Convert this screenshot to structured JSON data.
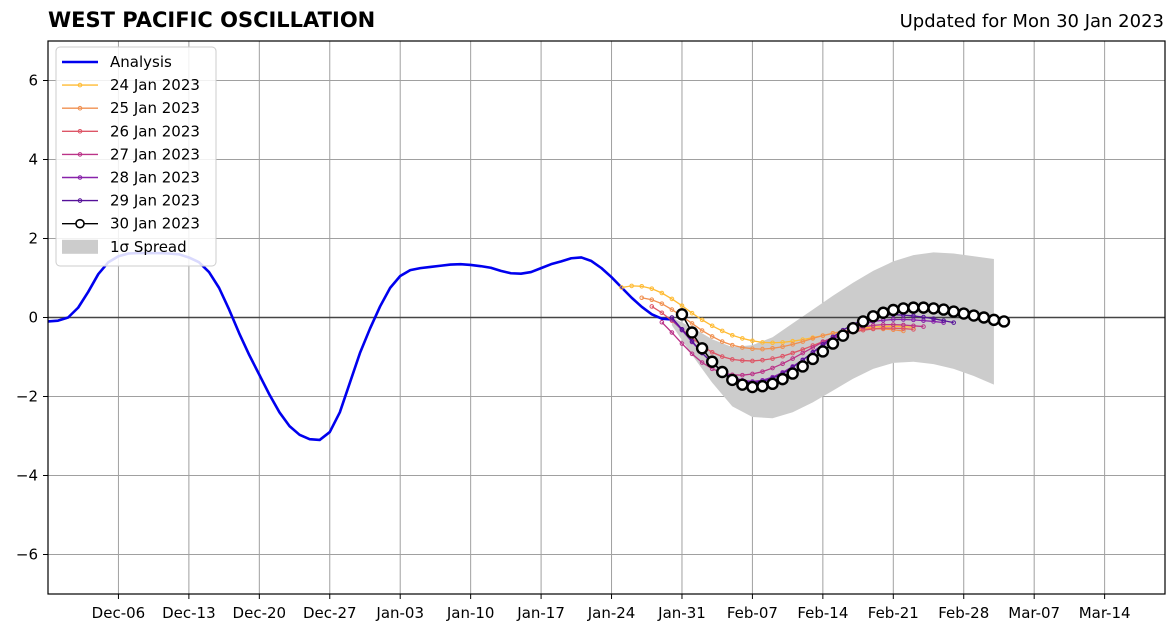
{
  "chart_data": {
    "type": "line",
    "title": "WEST PACIFIC OSCILLATION",
    "subtitle": "Updated for Mon 30 Jan 2023",
    "x_axis": {
      "type": "date",
      "range": [
        "2022-11-29",
        "2023-03-20"
      ],
      "ticks": [
        {
          "date": "2022-12-06",
          "label": "Dec-06"
        },
        {
          "date": "2022-12-13",
          "label": "Dec-13"
        },
        {
          "date": "2022-12-20",
          "label": "Dec-20"
        },
        {
          "date": "2022-12-27",
          "label": "Dec-27"
        },
        {
          "date": "2023-01-03",
          "label": "Jan-03"
        },
        {
          "date": "2023-01-10",
          "label": "Jan-10"
        },
        {
          "date": "2023-01-17",
          "label": "Jan-17"
        },
        {
          "date": "2023-01-24",
          "label": "Jan-24"
        },
        {
          "date": "2023-01-31",
          "label": "Jan-31"
        },
        {
          "date": "2023-02-07",
          "label": "Feb-07"
        },
        {
          "date": "2023-02-14",
          "label": "Feb-14"
        },
        {
          "date": "2023-02-21",
          "label": "Feb-21"
        },
        {
          "date": "2023-02-28",
          "label": "Feb-28"
        },
        {
          "date": "2023-03-07",
          "label": "Mar-07"
        },
        {
          "date": "2023-03-14",
          "label": "Mar-14"
        }
      ]
    },
    "y_axis": {
      "range": [
        -7,
        7
      ],
      "ticks": [
        {
          "value": -6,
          "label": "−6"
        },
        {
          "value": -4,
          "label": "−4"
        },
        {
          "value": -2,
          "label": "−2"
        },
        {
          "value": 0,
          "label": "0"
        },
        {
          "value": 2,
          "label": "2"
        },
        {
          "value": 4,
          "label": "4"
        },
        {
          "value": 6,
          "label": "6"
        }
      ]
    },
    "grid": true,
    "legend_placement": "top-left",
    "analysis": {
      "name": "Analysis",
      "color": "#0000ee",
      "points": [
        [
          "2022-11-29",
          -0.1
        ],
        [
          "2022-11-30",
          -0.08
        ],
        [
          "2022-12-01",
          0.0
        ],
        [
          "2022-12-02",
          0.25
        ],
        [
          "2022-12-03",
          0.65
        ],
        [
          "2022-12-04",
          1.1
        ],
        [
          "2022-12-05",
          1.4
        ],
        [
          "2022-12-06",
          1.55
        ],
        [
          "2022-12-07",
          1.62
        ],
        [
          "2022-12-08",
          1.63
        ],
        [
          "2022-12-09",
          1.63
        ],
        [
          "2022-12-10",
          1.63
        ],
        [
          "2022-12-11",
          1.62
        ],
        [
          "2022-12-12",
          1.6
        ],
        [
          "2022-12-13",
          1.52
        ],
        [
          "2022-12-14",
          1.4
        ],
        [
          "2022-12-15",
          1.15
        ],
        [
          "2022-12-16",
          0.75
        ],
        [
          "2022-12-17",
          0.2
        ],
        [
          "2022-12-18",
          -0.4
        ],
        [
          "2022-12-19",
          -0.95
        ],
        [
          "2022-12-20",
          -1.45
        ],
        [
          "2022-12-21",
          -1.95
        ],
        [
          "2022-12-22",
          -2.4
        ],
        [
          "2022-12-23",
          -2.75
        ],
        [
          "2022-12-24",
          -2.97
        ],
        [
          "2022-12-25",
          -3.08
        ],
        [
          "2022-12-26",
          -3.1
        ],
        [
          "2022-12-27",
          -2.9
        ],
        [
          "2022-12-28",
          -2.4
        ],
        [
          "2022-12-29",
          -1.65
        ],
        [
          "2022-12-30",
          -0.9
        ],
        [
          "2022-12-31",
          -0.28
        ],
        [
          "2023-01-01",
          0.28
        ],
        [
          "2023-01-02",
          0.75
        ],
        [
          "2023-01-03",
          1.05
        ],
        [
          "2023-01-04",
          1.2
        ],
        [
          "2023-01-05",
          1.25
        ],
        [
          "2023-01-06",
          1.28
        ],
        [
          "2023-01-07",
          1.31
        ],
        [
          "2023-01-08",
          1.34
        ],
        [
          "2023-01-09",
          1.35
        ],
        [
          "2023-01-10",
          1.33
        ],
        [
          "2023-01-11",
          1.3
        ],
        [
          "2023-01-12",
          1.26
        ],
        [
          "2023-01-13",
          1.18
        ],
        [
          "2023-01-14",
          1.12
        ],
        [
          "2023-01-15",
          1.11
        ],
        [
          "2023-01-16",
          1.15
        ],
        [
          "2023-01-17",
          1.25
        ],
        [
          "2023-01-18",
          1.35
        ],
        [
          "2023-01-19",
          1.42
        ],
        [
          "2023-01-20",
          1.5
        ],
        [
          "2023-01-21",
          1.52
        ],
        [
          "2023-01-22",
          1.43
        ],
        [
          "2023-01-23",
          1.25
        ],
        [
          "2023-01-24",
          1.02
        ],
        [
          "2023-01-25",
          0.76
        ],
        [
          "2023-01-26",
          0.5
        ],
        [
          "2023-01-27",
          0.27
        ],
        [
          "2023-01-28",
          0.08
        ],
        [
          "2023-01-29",
          -0.03
        ],
        [
          "2023-01-30",
          -0.05
        ]
      ]
    },
    "spread": {
      "name": "1σ Spread",
      "color": "#cccccc",
      "upper": [
        [
          "2023-01-30",
          0.0
        ],
        [
          "2023-02-01",
          -0.25
        ],
        [
          "2023-02-03",
          -0.55
        ],
        [
          "2023-02-05",
          -0.75
        ],
        [
          "2023-02-07",
          -0.7
        ],
        [
          "2023-02-09",
          -0.5
        ],
        [
          "2023-02-11",
          -0.15
        ],
        [
          "2023-02-13",
          0.2
        ],
        [
          "2023-02-15",
          0.55
        ],
        [
          "2023-02-17",
          0.88
        ],
        [
          "2023-02-19",
          1.18
        ],
        [
          "2023-02-21",
          1.42
        ],
        [
          "2023-02-23",
          1.58
        ],
        [
          "2023-02-25",
          1.65
        ],
        [
          "2023-02-27",
          1.62
        ],
        [
          "2023-03-01",
          1.55
        ],
        [
          "2023-03-03",
          1.48
        ]
      ],
      "lower": [
        [
          "2023-01-30",
          -0.2
        ],
        [
          "2023-02-01",
          -0.95
        ],
        [
          "2023-02-03",
          -1.65
        ],
        [
          "2023-02-05",
          -2.25
        ],
        [
          "2023-02-07",
          -2.52
        ],
        [
          "2023-02-09",
          -2.55
        ],
        [
          "2023-02-11",
          -2.4
        ],
        [
          "2023-02-13",
          -2.15
        ],
        [
          "2023-02-15",
          -1.85
        ],
        [
          "2023-02-17",
          -1.55
        ],
        [
          "2023-02-19",
          -1.3
        ],
        [
          "2023-02-21",
          -1.15
        ],
        [
          "2023-02-23",
          -1.12
        ],
        [
          "2023-02-25",
          -1.18
        ],
        [
          "2023-02-27",
          -1.3
        ],
        [
          "2023-03-01",
          -1.48
        ],
        [
          "2023-03-03",
          -1.7
        ]
      ]
    },
    "forecasts": [
      {
        "name": "24 Jan 2023",
        "color": "#ffbb33",
        "start": "2023-01-25",
        "values": [
          0.76,
          0.8,
          0.79,
          0.73,
          0.62,
          0.47,
          0.3,
          0.11,
          -0.06,
          -0.21,
          -0.34,
          -0.45,
          -0.53,
          -0.59,
          -0.63,
          -0.64,
          -0.63,
          -0.6,
          -0.56,
          -0.51,
          -0.46,
          -0.4,
          -0.35,
          -0.3,
          -0.27,
          -0.24,
          -0.23,
          -0.22,
          -0.23,
          -0.25
        ]
      },
      {
        "name": "25 Jan 2023",
        "color": "#f09050",
        "start": "2023-01-27",
        "values": [
          0.5,
          0.45,
          0.35,
          0.2,
          0.03,
          -0.15,
          -0.33,
          -0.48,
          -0.61,
          -0.7,
          -0.76,
          -0.79,
          -0.8,
          -0.78,
          -0.74,
          -0.68,
          -0.61,
          -0.53,
          -0.46,
          -0.4,
          -0.35,
          -0.31,
          -0.29,
          -0.28,
          -0.29,
          -0.31,
          -0.34
        ]
      },
      {
        "name": "26 Jan 2023",
        "color": "#dd5566",
        "start": "2023-01-28",
        "values": [
          0.28,
          0.12,
          -0.08,
          -0.3,
          -0.52,
          -0.72,
          -0.88,
          -0.99,
          -1.06,
          -1.09,
          -1.1,
          -1.08,
          -1.04,
          -0.98,
          -0.9,
          -0.81,
          -0.71,
          -0.61,
          -0.52,
          -0.44,
          -0.37,
          -0.32,
          -0.29,
          -0.27,
          -0.27,
          -0.28,
          -0.3
        ]
      },
      {
        "name": "27 Jan 2023",
        "color": "#bb3388",
        "start": "2023-01-29",
        "values": [
          -0.12,
          -0.38,
          -0.66,
          -0.92,
          -1.14,
          -1.3,
          -1.4,
          -1.45,
          -1.46,
          -1.43,
          -1.37,
          -1.28,
          -1.17,
          -1.04,
          -0.9,
          -0.76,
          -0.62,
          -0.5,
          -0.39,
          -0.3,
          -0.24,
          -0.2,
          -0.18,
          -0.18,
          -0.19,
          -0.21,
          -0.23
        ]
      },
      {
        "name": "28 Jan 2023",
        "color": "#8822aa",
        "start": "2023-01-30",
        "values": [
          -0.05,
          -0.32,
          -0.62,
          -0.9,
          -1.15,
          -1.35,
          -1.5,
          -1.59,
          -1.62,
          -1.59,
          -1.51,
          -1.39,
          -1.24,
          -1.07,
          -0.89,
          -0.71,
          -0.55,
          -0.4,
          -0.27,
          -0.17,
          -0.1,
          -0.07,
          -0.05,
          -0.05,
          -0.06,
          -0.08,
          -0.1,
          -0.13
        ]
      },
      {
        "name": "29 Jan 2023",
        "color": "#551199",
        "start": "2023-01-30",
        "values": [
          0.0,
          -0.3,
          -0.6,
          -0.9,
          -1.15,
          -1.37,
          -1.53,
          -1.62,
          -1.65,
          -1.62,
          -1.54,
          -1.42,
          -1.26,
          -1.08,
          -0.88,
          -0.68,
          -0.49,
          -0.32,
          -0.17,
          -0.06,
          0.02,
          0.06,
          0.07,
          0.06,
          0.04,
          0.01,
          -0.03,
          -0.08,
          -0.13
        ]
      }
    ],
    "latest": {
      "name": "30 Jan 2023",
      "color": "#000000",
      "start": "2023-01-31",
      "values": [
        0.08,
        -0.38,
        -0.78,
        -1.12,
        -1.38,
        -1.58,
        -1.7,
        -1.76,
        -1.74,
        -1.68,
        -1.56,
        -1.42,
        -1.24,
        -1.05,
        -0.86,
        -0.66,
        -0.46,
        -0.27,
        -0.1,
        0.03,
        0.12,
        0.19,
        0.23,
        0.25,
        0.25,
        0.23,
        0.2,
        0.15,
        0.1,
        0.05,
        0.0,
        -0.06,
        -0.1
      ]
    }
  }
}
